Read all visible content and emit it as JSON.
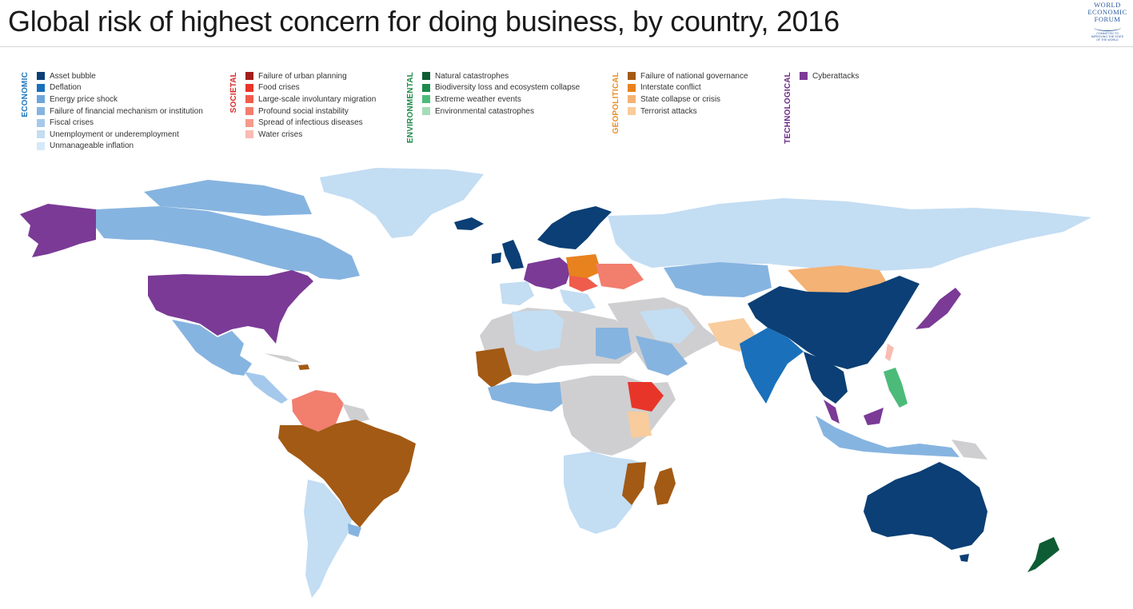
{
  "title": "Global risk of highest concern for doing business, by country, 2016",
  "logo": {
    "lines": [
      "WORLD",
      "ECONOMIC",
      "FORUM"
    ],
    "tagline": [
      "COMMITTED TO",
      "IMPROVING THE STATE",
      "OF THE WORLD"
    ]
  },
  "legend": [
    {
      "category": "ECONOMIC",
      "color": "#1f77bf",
      "items": [
        {
          "label": "Asset bubble",
          "color": "#0b3f75"
        },
        {
          "label": "Deflation",
          "color": "#1a70ba"
        },
        {
          "label": "Energy price shock",
          "color": "#6ea6dc"
        },
        {
          "label": "Failure of financial mechanism or institution",
          "color": "#86b4e0"
        },
        {
          "label": "Fiscal crises",
          "color": "#a5c9ec"
        },
        {
          "label": "Unemployment or underemployment",
          "color": "#c3ddf3"
        },
        {
          "label": "Unmanageable inflation",
          "color": "#d6e9f8"
        }
      ]
    },
    {
      "category": "SOCIETAL",
      "color": "#d92b2b",
      "items": [
        {
          "label": "Failure of urban planning",
          "color": "#a31d1d"
        },
        {
          "label": "Food crises",
          "color": "#e8352a"
        },
        {
          "label": "Large-scale involuntary migration",
          "color": "#ef5c4c"
        },
        {
          "label": "Profound social instability",
          "color": "#f27e6e"
        },
        {
          "label": "Spread of infectious diseases",
          "color": "#f59a8c"
        },
        {
          "label": "Water crises",
          "color": "#f8bcb2"
        }
      ]
    },
    {
      "category": "ENVIRONMENTAL",
      "color": "#1e8a4c",
      "items": [
        {
          "label": "Natural catastrophes",
          "color": "#0e5c33"
        },
        {
          "label": "Biodiversity loss and ecosystem collapse",
          "color": "#1b8a4d"
        },
        {
          "label": "Extreme weather events",
          "color": "#4cbb7a"
        },
        {
          "label": "Environmental catastrophes",
          "color": "#a6dcb8"
        }
      ]
    },
    {
      "category": "GEOPOLITICAL",
      "color": "#e8902a",
      "items": [
        {
          "label": "Failure of national governance",
          "color": "#a35a14"
        },
        {
          "label": "Interstate conflict",
          "color": "#e8821e"
        },
        {
          "label": "State collapse or crisis",
          "color": "#f4b274"
        },
        {
          "label": "Terrorist attacks",
          "color": "#f8cc9c"
        }
      ]
    },
    {
      "category": "TECHNOLOGICAL",
      "color": "#6b2a86",
      "items": [
        {
          "label": "Cyberattacks",
          "color": "#7b3a96"
        }
      ]
    }
  ],
  "map_colors": {
    "no_data": "#cfcfd1",
    "ocean": "#ffffff"
  }
}
